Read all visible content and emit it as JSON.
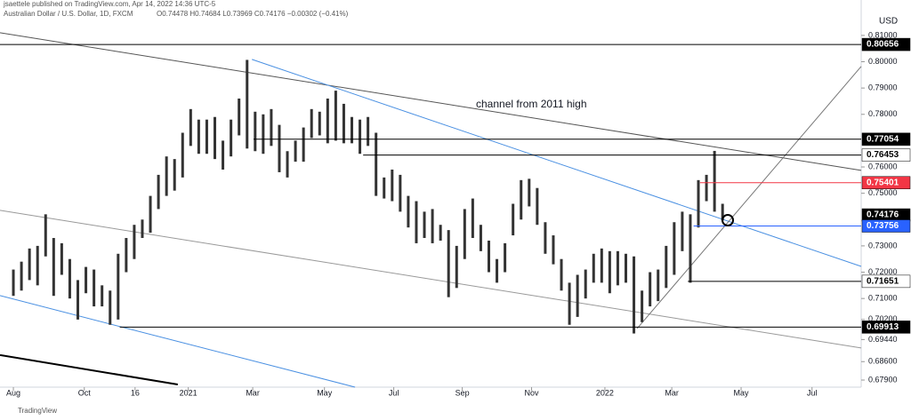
{
  "header": {
    "publisher": "jsaettele published on TradingView.com, Apr 14, 2022 14:36 UTC-5",
    "symbol": "Australian Dollar / U.S. Dollar, 1D, FXCM",
    "ohlc": "O0.74478 H0.74684 L0.73969 C0.74176 −0.00302 (−0.41%)",
    "currency": "USD"
  },
  "footer": {
    "brand": "TradingView"
  },
  "chart_data": {
    "type": "range-bar",
    "annotation": "channel from 2011 high",
    "xlim": [
      -1.66,
      105.2
    ],
    "ylim": [
      0.6763,
      0.8184
    ],
    "xticks": [
      {
        "value": 0,
        "label": "Aug"
      },
      {
        "value": 8.8,
        "label": "Oct"
      },
      {
        "value": 15.1,
        "label": "16"
      },
      {
        "value": 21.7,
        "label": "2021"
      },
      {
        "value": 29.7,
        "label": "Mar"
      },
      {
        "value": 38.6,
        "label": "May"
      },
      {
        "value": 47.2,
        "label": "Jul"
      },
      {
        "value": 55.7,
        "label": "Sep"
      },
      {
        "value": 64.3,
        "label": "Nov"
      },
      {
        "value": 73.4,
        "label": "2022"
      },
      {
        "value": 81.7,
        "label": "Mar"
      },
      {
        "value": 90.3,
        "label": "May"
      },
      {
        "value": 99.1,
        "label": "Jul"
      }
    ],
    "yticks": [
      {
        "value": 0.81,
        "label": "0.81000"
      },
      {
        "value": 0.8,
        "label": "0.80000"
      },
      {
        "value": 0.79,
        "label": "0.79000"
      },
      {
        "value": 0.78,
        "label": "0.78000"
      },
      {
        "value": 0.76,
        "label": "0.76000"
      },
      {
        "value": 0.75,
        "label": "0.75000"
      },
      {
        "value": 0.73,
        "label": "0.73000"
      },
      {
        "value": 0.72,
        "label": "0.72000"
      },
      {
        "value": 0.71,
        "label": "0.71000"
      },
      {
        "value": 0.702,
        "label": "0.70200"
      },
      {
        "value": 0.6944,
        "label": "0.69440"
      },
      {
        "value": 0.686,
        "label": "0.68600"
      },
      {
        "value": 0.679,
        "label": "0.67900"
      }
    ],
    "color": "#333333",
    "low": [
      0.711,
      0.713,
      0.717,
      0.715,
      0.726,
      0.711,
      0.719,
      0.71,
      0.702,
      0.712,
      0.707,
      0.707,
      0.7,
      0.702,
      0.72,
      0.725,
      0.733,
      0.735,
      0.744,
      0.749,
      0.751,
      0.756,
      0.768,
      0.765,
      0.765,
      0.763,
      0.759,
      0.764,
      0.772,
      0.767,
      0.766,
      0.765,
      0.768,
      0.758,
      0.756,
      0.762,
      0.762,
      0.771,
      0.772,
      0.769,
      0.77,
      0.769,
      0.769,
      0.765,
      0.768,
      0.749,
      0.748,
      0.747,
      0.743,
      0.737,
      0.731,
      0.733,
      0.731,
      0.732,
      0.7105,
      0.714,
      0.725,
      0.733,
      0.728,
      0.72,
      0.716,
      0.72,
      0.734,
      0.74,
      0.745,
      0.738,
      0.727,
      0.723,
      0.713,
      0.7,
      0.703,
      0.71,
      0.716,
      0.716,
      0.712,
      0.715,
      0.716,
      0.6967,
      0.701,
      0.707,
      0.709,
      0.714,
      0.719,
      0.728,
      0.716,
      0.737,
      0.747,
      0.743,
      0.7397
    ],
    "high": [
      0.721,
      0.724,
      0.729,
      0.73,
      0.742,
      0.733,
      0.731,
      0.725,
      0.717,
      0.722,
      0.721,
      0.715,
      0.713,
      0.727,
      0.733,
      0.738,
      0.74,
      0.749,
      0.757,
      0.764,
      0.763,
      0.773,
      0.782,
      0.778,
      0.778,
      0.779,
      0.77,
      0.778,
      0.786,
      0.8007,
      0.781,
      0.78,
      0.782,
      0.776,
      0.766,
      0.77,
      0.775,
      0.782,
      0.781,
      0.786,
      0.789,
      0.784,
      0.779,
      0.778,
      0.779,
      0.773,
      0.756,
      0.759,
      0.757,
      0.749,
      0.747,
      0.743,
      0.744,
      0.738,
      0.736,
      0.73,
      0.744,
      0.748,
      0.738,
      0.732,
      0.725,
      0.731,
      0.746,
      0.755,
      0.7555,
      0.752,
      0.739,
      0.734,
      0.725,
      0.716,
      0.719,
      0.721,
      0.727,
      0.729,
      0.728,
      0.728,
      0.727,
      0.726,
      0.713,
      0.72,
      0.721,
      0.73,
      0.739,
      0.743,
      0.742,
      0.755,
      0.757,
      0.7661,
      0.746
    ],
    "levels": [
      {
        "value": 0.80656,
        "start": -1.66,
        "color": "#000000",
        "text": "#ffffff"
      },
      {
        "value": 0.77054,
        "start": 29.8,
        "color": "#000000",
        "text": "#ffffff"
      },
      {
        "value": 0.76453,
        "start": 43.4,
        "color": "#ffffff",
        "text": "#000000"
      },
      {
        "value": 0.75401,
        "start": 85.2,
        "color": "#f23645",
        "text": "#ffffff"
      },
      {
        "value": 0.74176,
        "start": 105.2,
        "color": "#000000",
        "text": "#ffffff"
      },
      {
        "value": 0.73756,
        "start": 84.4,
        "color": "#2962ff",
        "text": "#ffffff"
      },
      {
        "value": 0.71651,
        "start": 83.7,
        "color": "#ffffff",
        "text": "#000000"
      },
      {
        "value": 0.69913,
        "start": 13.2,
        "color": "#000000",
        "text": "#ffffff"
      }
    ],
    "trendlines": [
      {
        "x": [
          -1.66,
          105.2
        ],
        "y": [
          0.811,
          0.7587
        ],
        "color": "#555555"
      },
      {
        "x": [
          29.6,
          105.2
        ],
        "y": [
          0.8009,
          0.7222
        ],
        "color": "#4a90e2"
      },
      {
        "x": [
          -1.66,
          105.2
        ],
        "y": [
          0.7435,
          0.6912
        ],
        "color": "#999999"
      },
      {
        "x": [
          -1.66,
          42.4
        ],
        "y": [
          0.7111,
          0.6763
        ],
        "color": "#4a90e2"
      },
      {
        "x": [
          -1.66,
          20.4
        ],
        "y": [
          0.6885,
          0.6773
        ],
        "color": "#000000"
      },
      {
        "x": [
          77.4,
          105.2
        ],
        "y": [
          0.6986,
          0.7982
        ],
        "color": "#777777"
      }
    ]
  }
}
